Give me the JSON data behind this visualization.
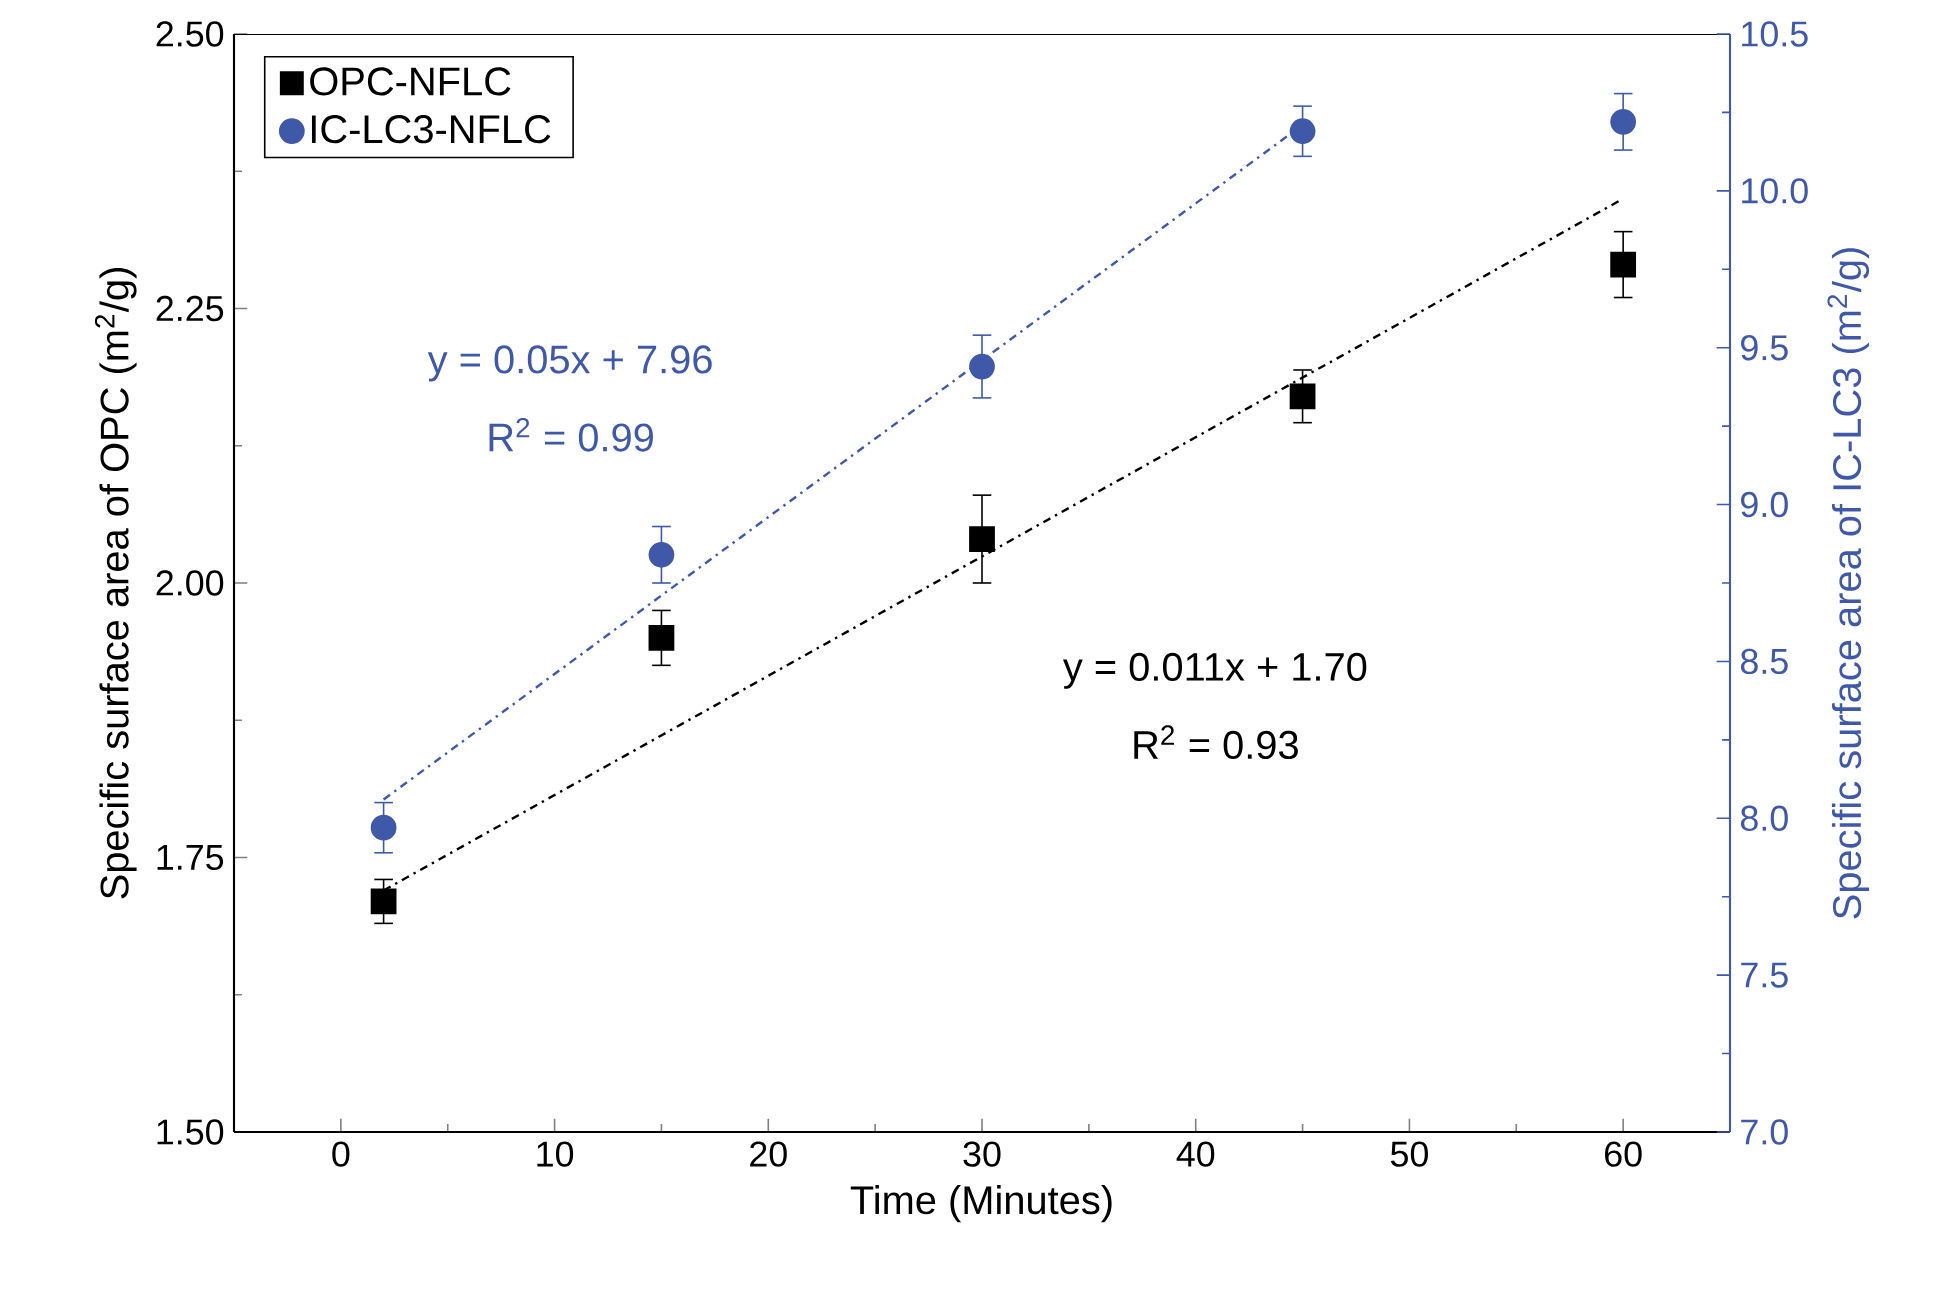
{
  "chart_data": {
    "type": "scatter",
    "xlabel": "Time (Minutes)",
    "ylabel": "Specific surface area of OPC (m$^{2}$/g)",
    "y2label": "Specific surface area of IC-LC3 (m$^{2}$/g)",
    "xlim": [
      -5,
      65
    ],
    "xticks": [
      0,
      10,
      20,
      30,
      40,
      50,
      60
    ],
    "ylim": [
      1.5,
      2.5
    ],
    "yticks": [
      {
        "value": 1.5,
        "label": "1.50"
      },
      1.75,
      {
        "value": 2.0,
        "label": "2.00"
      },
      2.25,
      {
        "value": 2.5,
        "label": "2.50"
      }
    ],
    "y2lim": [
      7.0,
      10.5
    ],
    "y2ticks": [
      {
        "value": 7.0,
        "label": "7.0"
      },
      7.5,
      {
        "value": 8.0,
        "label": "8.0"
      },
      8.5,
      {
        "value": 9.0,
        "label": "9.0"
      },
      9.5,
      {
        "value": 10.0,
        "label": "10.0"
      },
      10.5
    ],
    "legend": "top left",
    "grid": false,
    "series": [
      {
        "name": "OPC-NFLC",
        "color": "#000000",
        "marker": "square",
        "x": [
          2,
          15,
          30,
          45,
          60
        ],
        "values": [
          1.71,
          1.95,
          2.04,
          2.17,
          2.29
        ],
        "errors": [
          0.02,
          0.025,
          0.04,
          0.024,
          0.03
        ]
      },
      {
        "name": "IC-LC3-NFLC",
        "color": "#3f59a8",
        "marker": "circle",
        "axis": "y2",
        "x": [
          2,
          15,
          30,
          45,
          60
        ],
        "values": [
          7.97,
          8.84,
          9.44,
          10.19,
          10.22
        ],
        "errors": [
          0.08,
          0.09,
          0.1,
          0.08,
          0.09
        ]
      },
      {
        "type": "line",
        "color": "#000000",
        "line_style": "dashdot",
        "marker": "none",
        "x": [
          2,
          60
        ],
        "values": [
          1.72,
          2.35
        ]
      },
      {
        "type": "line",
        "color": "#3f59a8",
        "line_style": "dashdot",
        "marker": "none",
        "axis": "y2",
        "x": [
          2,
          45
        ],
        "values": [
          8.06,
          10.21
        ]
      }
    ],
    "annotations": [
      "y = 0.05x + 7.96",
      "R$^{2}$ = 0.99",
      "y = 0.011x + 1.70",
      "R$^{2}$ = 0.93"
    ]
  }
}
